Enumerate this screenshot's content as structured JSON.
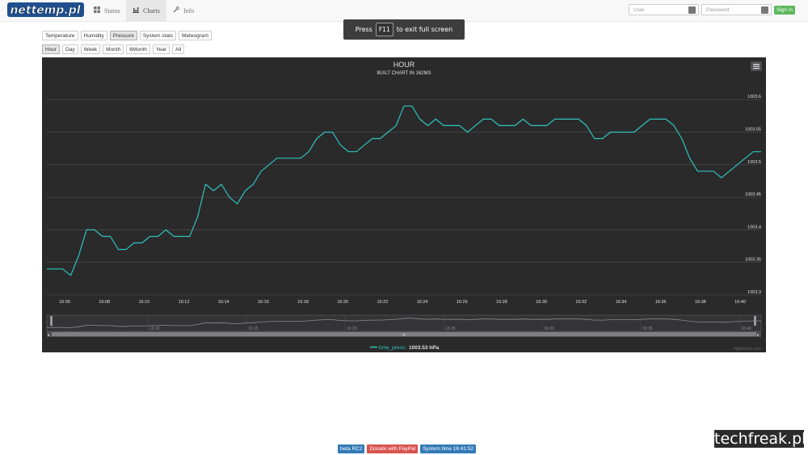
{
  "brand": {
    "logo_text": "nettemp.pl"
  },
  "nav": {
    "items": [
      {
        "label": "Status",
        "icon": "dashboard-icon"
      },
      {
        "label": "Charts",
        "icon": "bar-chart-icon"
      },
      {
        "label": "Info",
        "icon": "wrench-icon"
      }
    ]
  },
  "login": {
    "user_placeholder": "User",
    "password_placeholder": "Password",
    "signin_label": "Sign in"
  },
  "fullscreen_notice": {
    "press": "Press",
    "key": "F11",
    "rest": "to exit full screen"
  },
  "sensor_buttons": [
    "Temperature",
    "Humidity",
    "Pressure",
    "System stats",
    "Meteogram"
  ],
  "sensor_active": "Pressure",
  "period_buttons": [
    "Hour",
    "Day",
    "Week",
    "Month",
    "6Month",
    "Year",
    "All"
  ],
  "period_active": "Hour",
  "chart_data": {
    "type": "line",
    "title": "HOUR",
    "subtitle": "BUILT CHART IN 162MS",
    "ylim": [
      1003.3,
      1003.63
    ],
    "y_ticks": [
      "1003.3",
      "1003.35",
      "1003.4",
      "1003.45",
      "1003.5",
      "1003.55",
      "1003.6"
    ],
    "x_ticks": [
      "16:06",
      "16:08",
      "16:10",
      "16:12",
      "16:14",
      "16:16",
      "16:18",
      "16:20",
      "16:22",
      "16:24",
      "16:26",
      "16:28",
      "16:30",
      "16:32",
      "16:34",
      "16:36",
      "16:38",
      "16:40"
    ],
    "navigator_ticks": [
      "16:10",
      "16:15",
      "16:20",
      "16:25",
      "16:30",
      "16:35",
      "16:40"
    ],
    "series": [
      {
        "name": "bme_press",
        "color": "#2ec3b9",
        "x": [
          365.2,
          365.6,
          366.0,
          366.4,
          366.8,
          367.2,
          367.6,
          368.0,
          368.4,
          368.8,
          369.2,
          369.6,
          370.0,
          370.4,
          370.8,
          371.2,
          371.6,
          372.0,
          372.4,
          372.8,
          373.2,
          373.6,
          374.0,
          374.4,
          374.8,
          375.2,
          375.6,
          376.0,
          376.4,
          376.8,
          377.2,
          377.6,
          378.0,
          378.4,
          378.8,
          379.2,
          379.6,
          380.0,
          380.4,
          380.8,
          381.2,
          381.6,
          382.0,
          382.4,
          382.8,
          383.2,
          383.6,
          384.0,
          384.4,
          384.8,
          385.2,
          385.6,
          386.0,
          386.4,
          386.8,
          387.2,
          387.6,
          388.0,
          388.4,
          388.8,
          389.2,
          389.6,
          390.0,
          390.4,
          390.8,
          391.2,
          391.6,
          392.0,
          392.4,
          392.8,
          393.2,
          393.6,
          394.0,
          394.4,
          394.8,
          395.2,
          395.6,
          396.0,
          396.4,
          396.8,
          397.2,
          397.6,
          398.0,
          398.4,
          398.8,
          399.2,
          399.6,
          400.0,
          400.4,
          400.8,
          401.2
        ],
        "values": [
          1003.34,
          1003.34,
          1003.34,
          1003.33,
          1003.36,
          1003.4,
          1003.4,
          1003.39,
          1003.39,
          1003.37,
          1003.37,
          1003.38,
          1003.38,
          1003.39,
          1003.39,
          1003.4,
          1003.39,
          1003.39,
          1003.39,
          1003.42,
          1003.47,
          1003.46,
          1003.47,
          1003.45,
          1003.44,
          1003.46,
          1003.47,
          1003.49,
          1003.5,
          1003.51,
          1003.51,
          1003.51,
          1003.51,
          1003.52,
          1003.54,
          1003.55,
          1003.55,
          1003.53,
          1003.52,
          1003.52,
          1003.53,
          1003.54,
          1003.54,
          1003.55,
          1003.56,
          1003.59,
          1003.59,
          1003.57,
          1003.56,
          1003.57,
          1003.56,
          1003.56,
          1003.56,
          1003.55,
          1003.56,
          1003.57,
          1003.57,
          1003.56,
          1003.56,
          1003.56,
          1003.57,
          1003.56,
          1003.56,
          1003.56,
          1003.57,
          1003.57,
          1003.57,
          1003.57,
          1003.56,
          1003.54,
          1003.54,
          1003.55,
          1003.55,
          1003.55,
          1003.55,
          1003.56,
          1003.57,
          1003.57,
          1003.57,
          1003.56,
          1003.54,
          1003.51,
          1003.49,
          1003.49,
          1003.49,
          1003.48,
          1003.49,
          1003.5,
          1003.51,
          1003.52,
          1003.52
        ]
      }
    ],
    "legend": {
      "name": "bme_press:",
      "value": "1003.53 hPa"
    },
    "credits": "Highcharts.com",
    "grid": true
  },
  "footer": {
    "badges": [
      {
        "label": "beta RC2",
        "color": "#337ab7"
      },
      {
        "label": "Donate with PayPal",
        "color": "#d9534f"
      },
      {
        "label": "System time 16:41:52",
        "color": "#337ab7"
      }
    ]
  },
  "watermark": "techfreak.pl"
}
